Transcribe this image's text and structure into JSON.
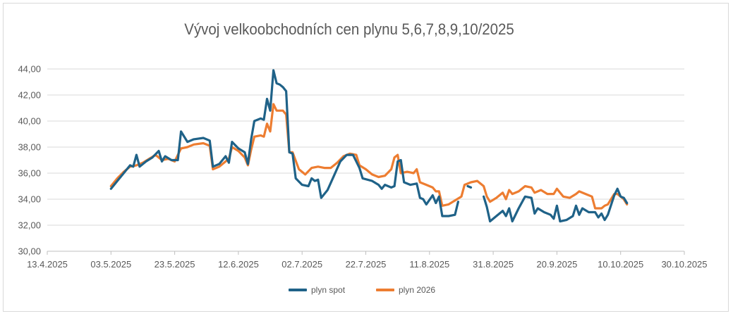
{
  "chart_data": {
    "type": "line",
    "title": "Vývoj velkoobchodních cen plynu 5,6,7,8,9,10/2025",
    "xlabel": "",
    "ylabel": "",
    "ylim": [
      30,
      44
    ],
    "yticks": [
      "30,00",
      "32,00",
      "34,00",
      "36,00",
      "38,00",
      "40,00",
      "42,00",
      "44,00"
    ],
    "xlim": [
      "2025-04-13",
      "2025-10-30"
    ],
    "xticks": [
      {
        "date": "2025-04-13",
        "label": "13.4.2025"
      },
      {
        "date": "2025-05-03",
        "label": "03.5.2025"
      },
      {
        "date": "2025-05-23",
        "label": "23.5.2025"
      },
      {
        "date": "2025-06-12",
        "label": "12.6.2025"
      },
      {
        "date": "2025-07-02",
        "label": "02.7.2025"
      },
      {
        "date": "2025-07-22",
        "label": "22.7.2025"
      },
      {
        "date": "2025-08-11",
        "label": "11.8.2025"
      },
      {
        "date": "2025-08-31",
        "label": "31.8.2025"
      },
      {
        "date": "2025-09-20",
        "label": "20.9.2025"
      },
      {
        "date": "2025-10-10",
        "label": "10.10.2025"
      },
      {
        "date": "2025-10-30",
        "label": "30.10.2025"
      }
    ],
    "grid": true,
    "legend_position": "bottom",
    "series": [
      {
        "name": "plyn spot",
        "color": "#1f6288",
        "points": [
          [
            "2025-05-03",
            34.8
          ],
          [
            "2025-05-05",
            35.4
          ],
          [
            "2025-05-07",
            36.0
          ],
          [
            "2025-05-09",
            36.6
          ],
          [
            "2025-05-10",
            36.5
          ],
          [
            "2025-05-11",
            37.4
          ],
          [
            "2025-05-12",
            36.5
          ],
          [
            "2025-05-14",
            36.9
          ],
          [
            "2025-05-16",
            37.2
          ],
          [
            "2025-05-18",
            37.7
          ],
          [
            "2025-05-19",
            36.9
          ],
          [
            "2025-05-20",
            37.3
          ],
          [
            "2025-05-22",
            37.0
          ],
          [
            "2025-05-24",
            37.0
          ],
          [
            "2025-05-25",
            39.2
          ],
          [
            "2025-05-27",
            38.4
          ],
          [
            "2025-05-29",
            38.6
          ],
          [
            "2025-06-01",
            38.7
          ],
          [
            "2025-06-03",
            38.5
          ],
          [
            "2025-06-04",
            36.5
          ],
          [
            "2025-06-06",
            36.7
          ],
          [
            "2025-06-08",
            37.3
          ],
          [
            "2025-06-09",
            36.8
          ],
          [
            "2025-06-10",
            38.4
          ],
          [
            "2025-06-12",
            37.9
          ],
          [
            "2025-06-14",
            37.6
          ],
          [
            "2025-06-15",
            36.7
          ],
          [
            "2025-06-16",
            38.6
          ],
          [
            "2025-06-17",
            40.0
          ],
          [
            "2025-06-19",
            40.2
          ],
          [
            "2025-06-20",
            40.1
          ],
          [
            "2025-06-21",
            41.7
          ],
          [
            "2025-06-22",
            40.8
          ],
          [
            "2025-06-23",
            43.9
          ],
          [
            "2025-06-24",
            42.9
          ],
          [
            "2025-06-25",
            42.8
          ],
          [
            "2025-06-26",
            42.6
          ],
          [
            "2025-06-27",
            42.3
          ],
          [
            "2025-06-28",
            37.6
          ],
          [
            "2025-06-29",
            37.5
          ],
          [
            "2025-06-30",
            35.6
          ],
          [
            "2025-07-02",
            35.1
          ],
          [
            "2025-07-04",
            35.0
          ],
          [
            "2025-07-05",
            35.6
          ],
          [
            "2025-07-06",
            35.4
          ],
          [
            "2025-07-07",
            35.5
          ],
          [
            "2025-07-08",
            34.1
          ],
          [
            "2025-07-10",
            34.7
          ],
          [
            "2025-07-12",
            35.8
          ],
          [
            "2025-07-14",
            36.9
          ],
          [
            "2025-07-16",
            37.4
          ],
          [
            "2025-07-18",
            37.4
          ],
          [
            "2025-07-20",
            36.4
          ],
          [
            "2025-07-21",
            35.6
          ],
          [
            "2025-07-24",
            35.4
          ],
          [
            "2025-07-26",
            35.1
          ],
          [
            "2025-07-27",
            34.8
          ],
          [
            "2025-07-28",
            35.1
          ],
          [
            "2025-07-30",
            34.9
          ],
          [
            "2025-07-31",
            35.0
          ],
          [
            "2025-08-01",
            36.9
          ],
          [
            "2025-08-02",
            37.0
          ],
          [
            "2025-08-03",
            35.3
          ],
          [
            "2025-08-05",
            35.1
          ],
          [
            "2025-08-07",
            35.2
          ],
          [
            "2025-08-08",
            34.1
          ],
          [
            "2025-08-09",
            34.0
          ],
          [
            "2025-08-10",
            33.6
          ],
          [
            "2025-08-12",
            34.3
          ],
          [
            "2025-08-13",
            33.7
          ],
          [
            "2025-08-14",
            34.2
          ],
          [
            "2025-08-15",
            32.7
          ],
          [
            "2025-08-17",
            32.7
          ],
          [
            "2025-08-19",
            32.8
          ],
          [
            "2025-08-20",
            33.8
          ]
        ],
        "points_b": [
          [
            "2025-08-23",
            35.0
          ],
          [
            "2025-08-24",
            34.9
          ]
        ],
        "points_c": [
          [
            "2025-08-28",
            34.2
          ],
          [
            "2025-08-29",
            33.4
          ],
          [
            "2025-08-30",
            32.3
          ],
          [
            "2025-09-01",
            32.7
          ],
          [
            "2025-09-03",
            33.1
          ],
          [
            "2025-09-04",
            32.7
          ],
          [
            "2025-09-05",
            33.3
          ],
          [
            "2025-09-06",
            32.3
          ],
          [
            "2025-09-08",
            33.3
          ],
          [
            "2025-09-10",
            34.2
          ],
          [
            "2025-09-12",
            34.1
          ],
          [
            "2025-09-13",
            32.9
          ],
          [
            "2025-09-14",
            33.3
          ],
          [
            "2025-09-16",
            33.0
          ],
          [
            "2025-09-18",
            32.8
          ],
          [
            "2025-09-19",
            32.5
          ],
          [
            "2025-09-20",
            33.5
          ],
          [
            "2025-09-21",
            32.3
          ],
          [
            "2025-09-23",
            32.4
          ],
          [
            "2025-09-25",
            32.7
          ],
          [
            "2025-09-26",
            33.5
          ],
          [
            "2025-09-27",
            32.8
          ],
          [
            "2025-09-28",
            33.3
          ],
          [
            "2025-09-30",
            33.0
          ],
          [
            "2025-10-02",
            33.0
          ],
          [
            "2025-10-03",
            32.6
          ],
          [
            "2025-10-04",
            32.9
          ],
          [
            "2025-10-05",
            32.4
          ],
          [
            "2025-10-06",
            32.8
          ],
          [
            "2025-10-08",
            34.3
          ],
          [
            "2025-10-09",
            34.8
          ],
          [
            "2025-10-10",
            34.2
          ],
          [
            "2025-10-11",
            34.1
          ],
          [
            "2025-10-12",
            33.7
          ]
        ]
      },
      {
        "name": "plyn 2026",
        "color": "#ed7d31",
        "points": [
          [
            "2025-05-03",
            35.0
          ],
          [
            "2025-05-05",
            35.6
          ],
          [
            "2025-05-07",
            36.1
          ],
          [
            "2025-05-09",
            36.5
          ],
          [
            "2025-05-11",
            36.6
          ],
          [
            "2025-05-13",
            36.8
          ],
          [
            "2025-05-15",
            37.1
          ],
          [
            "2025-05-17",
            37.4
          ],
          [
            "2025-05-19",
            37.0
          ],
          [
            "2025-05-21",
            37.1
          ],
          [
            "2025-05-23",
            36.9
          ],
          [
            "2025-05-25",
            37.9
          ],
          [
            "2025-05-27",
            38.0
          ],
          [
            "2025-05-29",
            38.2
          ],
          [
            "2025-06-01",
            38.3
          ],
          [
            "2025-06-03",
            38.1
          ],
          [
            "2025-06-04",
            36.3
          ],
          [
            "2025-06-06",
            36.5
          ],
          [
            "2025-06-08",
            36.9
          ],
          [
            "2025-06-09",
            37.1
          ],
          [
            "2025-06-10",
            38.0
          ],
          [
            "2025-06-12",
            37.7
          ],
          [
            "2025-06-14",
            37.2
          ],
          [
            "2025-06-15",
            36.6
          ],
          [
            "2025-06-16",
            37.8
          ],
          [
            "2025-06-17",
            38.8
          ],
          [
            "2025-06-19",
            38.9
          ],
          [
            "2025-06-20",
            38.8
          ],
          [
            "2025-06-21",
            39.8
          ],
          [
            "2025-06-22",
            39.2
          ],
          [
            "2025-06-23",
            41.3
          ],
          [
            "2025-06-24",
            40.8
          ],
          [
            "2025-06-26",
            40.8
          ],
          [
            "2025-06-27",
            40.5
          ],
          [
            "2025-06-28",
            37.6
          ],
          [
            "2025-06-29",
            37.6
          ],
          [
            "2025-07-01",
            36.3
          ],
          [
            "2025-07-03",
            35.9
          ],
          [
            "2025-07-05",
            36.4
          ],
          [
            "2025-07-07",
            36.5
          ],
          [
            "2025-07-09",
            36.4
          ],
          [
            "2025-07-11",
            36.4
          ],
          [
            "2025-07-13",
            36.8
          ],
          [
            "2025-07-15",
            37.3
          ],
          [
            "2025-07-17",
            37.5
          ],
          [
            "2025-07-19",
            37.4
          ],
          [
            "2025-07-20",
            36.6
          ],
          [
            "2025-07-22",
            36.3
          ],
          [
            "2025-07-24",
            35.9
          ],
          [
            "2025-07-26",
            35.7
          ],
          [
            "2025-07-28",
            35.8
          ],
          [
            "2025-07-30",
            36.3
          ],
          [
            "2025-07-31",
            37.2
          ],
          [
            "2025-08-01",
            37.4
          ],
          [
            "2025-08-02",
            36.0
          ],
          [
            "2025-08-04",
            36.1
          ],
          [
            "2025-08-06",
            36.0
          ],
          [
            "2025-08-07",
            36.3
          ],
          [
            "2025-08-08",
            35.3
          ],
          [
            "2025-08-10",
            35.1
          ],
          [
            "2025-08-12",
            34.9
          ],
          [
            "2025-08-13",
            34.6
          ],
          [
            "2025-08-14",
            34.6
          ],
          [
            "2025-08-15",
            33.5
          ],
          [
            "2025-08-17",
            33.6
          ],
          [
            "2025-08-19",
            33.9
          ],
          [
            "2025-08-21",
            34.2
          ],
          [
            "2025-08-22",
            35.1
          ],
          [
            "2025-08-24",
            35.3
          ],
          [
            "2025-08-26",
            35.4
          ],
          [
            "2025-08-28",
            35.0
          ],
          [
            "2025-08-29",
            34.2
          ],
          [
            "2025-08-30",
            33.8
          ],
          [
            "2025-09-01",
            34.1
          ],
          [
            "2025-09-03",
            34.5
          ],
          [
            "2025-09-04",
            34.0
          ],
          [
            "2025-09-05",
            34.7
          ],
          [
            "2025-09-06",
            34.4
          ],
          [
            "2025-09-08",
            34.6
          ],
          [
            "2025-09-10",
            35.0
          ],
          [
            "2025-09-12",
            34.9
          ],
          [
            "2025-09-13",
            34.5
          ],
          [
            "2025-09-15",
            34.7
          ],
          [
            "2025-09-17",
            34.4
          ],
          [
            "2025-09-19",
            34.4
          ],
          [
            "2025-09-20",
            34.8
          ],
          [
            "2025-09-22",
            34.2
          ],
          [
            "2025-09-24",
            34.1
          ],
          [
            "2025-09-26",
            34.4
          ],
          [
            "2025-09-27",
            34.6
          ],
          [
            "2025-09-29",
            34.4
          ],
          [
            "2025-10-01",
            34.2
          ],
          [
            "2025-10-02",
            33.3
          ],
          [
            "2025-10-04",
            33.3
          ],
          [
            "2025-10-05",
            33.5
          ],
          [
            "2025-10-06",
            33.6
          ],
          [
            "2025-10-08",
            34.4
          ],
          [
            "2025-10-09",
            34.4
          ],
          [
            "2025-10-10",
            34.2
          ],
          [
            "2025-10-11",
            34.0
          ],
          [
            "2025-10-12",
            33.6
          ]
        ]
      }
    ]
  }
}
